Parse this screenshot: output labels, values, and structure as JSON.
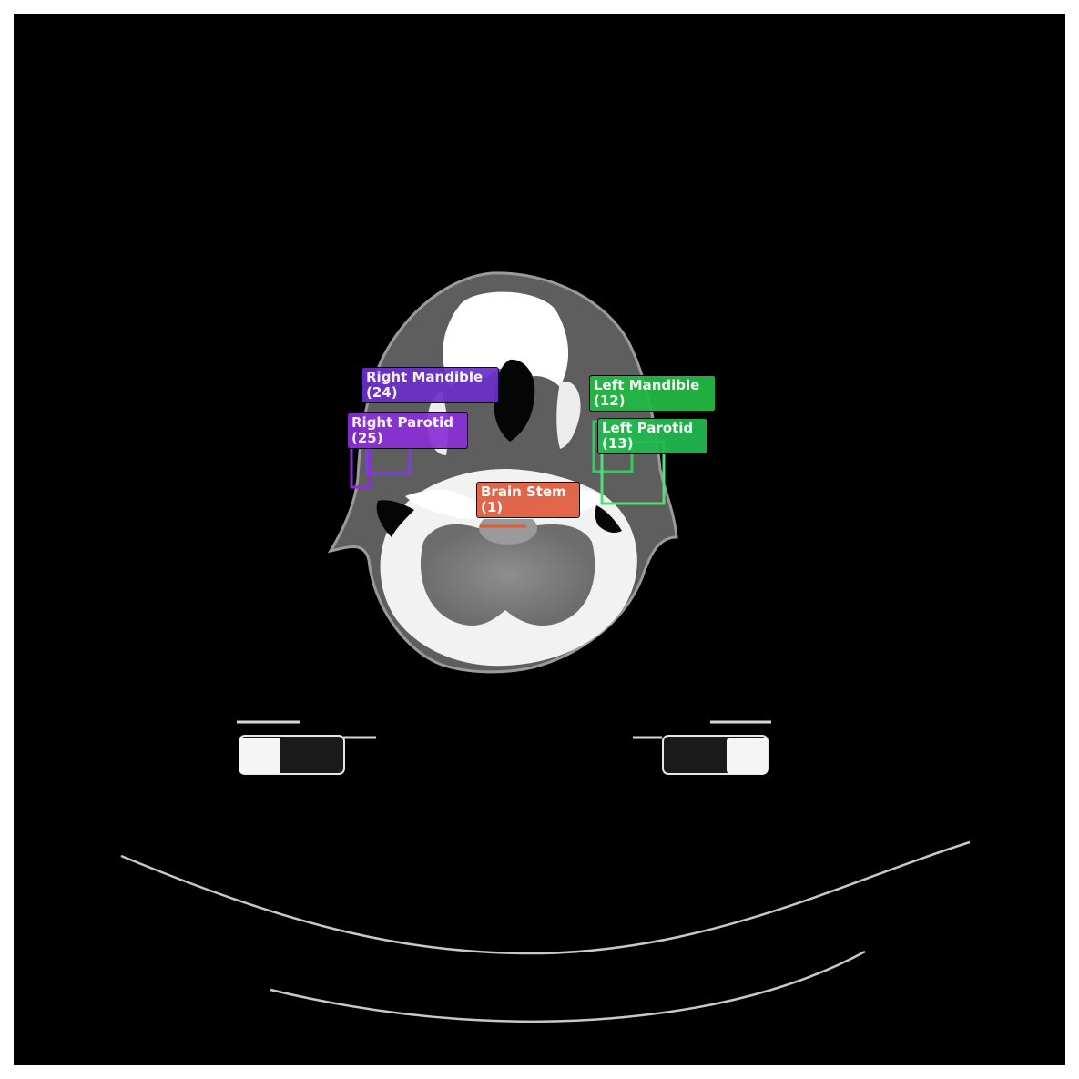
{
  "annotations": [
    {
      "id": "right-mandible",
      "name": "Right Mandible",
      "count": "(24)",
      "color": "#6a2fc9"
    },
    {
      "id": "right-parotid",
      "name": "Right Parotid",
      "count": "(25)",
      "color": "#8a2fd6"
    },
    {
      "id": "left-mandible",
      "name": "Left Mandible",
      "count": "(12)",
      "color": "#22b845"
    },
    {
      "id": "left-parotid",
      "name": "Left Parotid",
      "count": "(13)",
      "color": "#22b850"
    },
    {
      "id": "brain-stem",
      "name": "Brain Stem",
      "count": "(1)",
      "color": "#e05a3c"
    }
  ]
}
